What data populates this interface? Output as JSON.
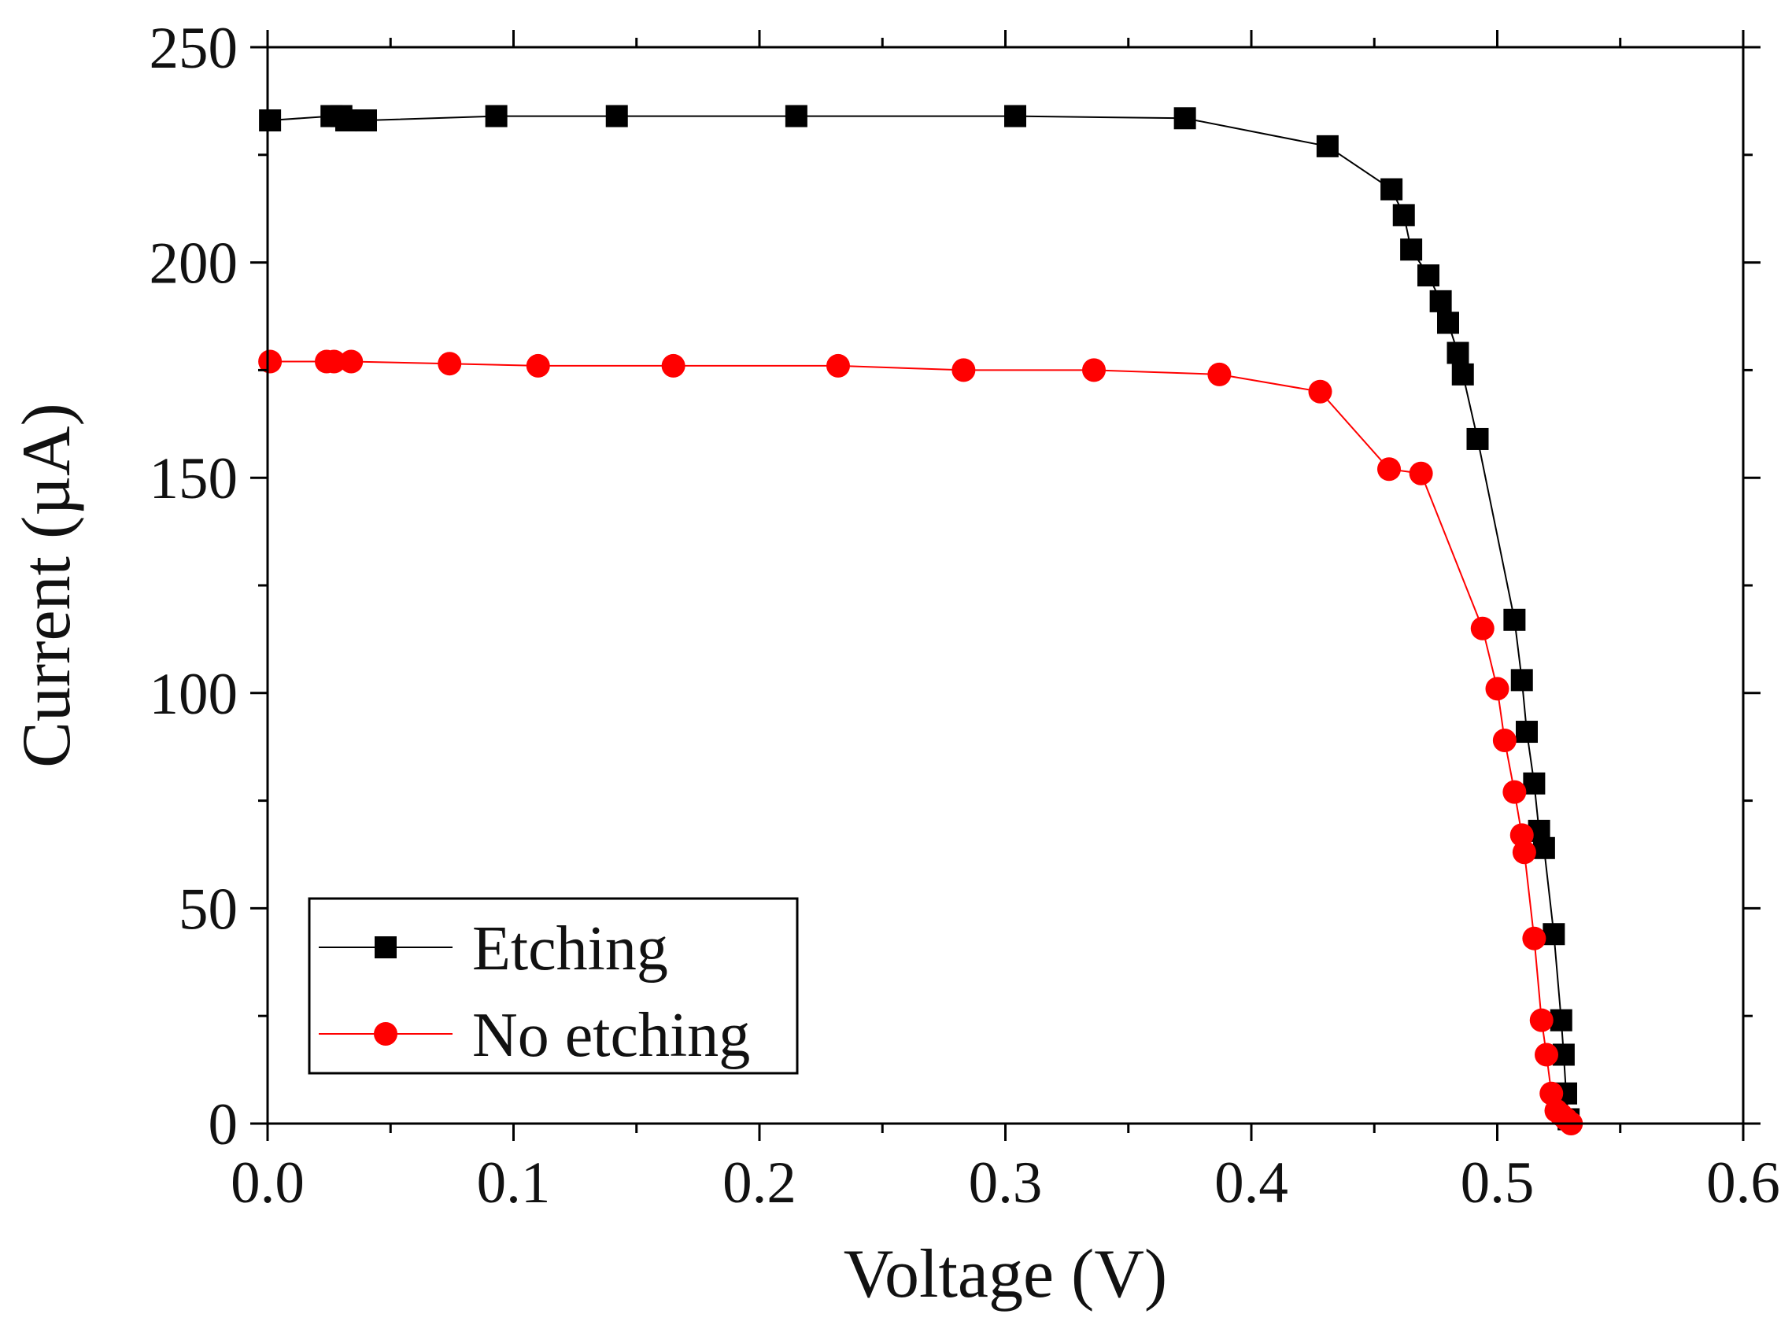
{
  "chart_data": {
    "type": "line",
    "title": "",
    "xlabel": "Voltage (V)",
    "ylabel": "Current (µA)",
    "xlim": [
      0.0,
      0.6
    ],
    "ylim": [
      0,
      250
    ],
    "xticks": [
      0.0,
      0.1,
      0.2,
      0.3,
      0.4,
      0.5,
      0.6
    ],
    "xtick_labels": [
      "0.0",
      "0.1",
      "0.2",
      "0.3",
      "0.4",
      "0.5",
      "0.6"
    ],
    "yticks": [
      0,
      50,
      100,
      150,
      200,
      250
    ],
    "ytick_labels": [
      "0",
      "50",
      "100",
      "150",
      "200",
      "250"
    ],
    "grid": false,
    "legend_position": "bottom-left",
    "series": [
      {
        "name": "Etching",
        "color": "#000000",
        "marker": "square",
        "x": [
          0.001,
          0.026,
          0.03,
          0.032,
          0.04,
          0.093,
          0.142,
          0.215,
          0.304,
          0.373,
          0.431,
          0.457,
          0.462,
          0.465,
          0.472,
          0.477,
          0.48,
          0.484,
          0.486,
          0.492,
          0.507,
          0.51,
          0.512,
          0.515,
          0.517,
          0.519,
          0.523,
          0.526,
          0.527,
          0.528,
          0.529
        ],
        "y": [
          233,
          234,
          234,
          233,
          233,
          234,
          234,
          234,
          234,
          233.5,
          227,
          217,
          211,
          203,
          197,
          191,
          186,
          179,
          174,
          159,
          117,
          103,
          91,
          79,
          68,
          64,
          44,
          24,
          16,
          7,
          1
        ]
      },
      {
        "name": "No etching",
        "color": "#ff0000",
        "marker": "circle",
        "x": [
          0.001,
          0.024,
          0.027,
          0.034,
          0.074,
          0.11,
          0.165,
          0.232,
          0.283,
          0.336,
          0.387,
          0.428,
          0.456,
          0.469,
          0.494,
          0.5,
          0.503,
          0.507,
          0.51,
          0.511,
          0.515,
          0.518,
          0.52,
          0.522,
          0.524,
          0.526,
          0.528,
          0.53
        ],
        "y": [
          177,
          177,
          177,
          177,
          176.5,
          176,
          176,
          176,
          175,
          175,
          174,
          170,
          152,
          151,
          115,
          101,
          89,
          77,
          67,
          63,
          43,
          24,
          16,
          7,
          3,
          2,
          1,
          0
        ]
      }
    ]
  }
}
